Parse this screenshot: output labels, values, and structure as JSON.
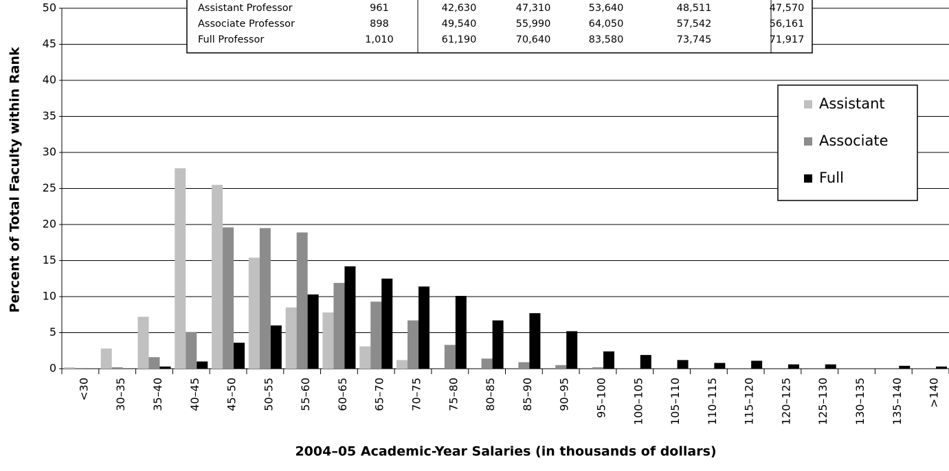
{
  "chart_data": {
    "type": "bar",
    "xlabel": "2004–05 Academic-Year Salaries (in thousands of dollars)",
    "ylabel": "Percent of Total Faculty within Rank",
    "categories": [
      "<30",
      "30–35",
      "35–40",
      "40–45",
      "45–50",
      "50–55",
      "55–60",
      "60–65",
      "65–70",
      "70–75",
      "75–80",
      "80–85",
      "85–90",
      "90–95",
      "95–100",
      "100–105",
      "105–110",
      "110–115",
      "115–120",
      "120–125",
      "125–130",
      "130–135",
      "135–140",
      ">140"
    ],
    "series": [
      {
        "name": "Assistant",
        "color": "#c0c0c0",
        "values": [
          0.2,
          2.8,
          7.2,
          27.8,
          25.5,
          15.4,
          8.5,
          7.8,
          3.1,
          1.2,
          0,
          0,
          0,
          0,
          0,
          0,
          0,
          0,
          0,
          0,
          0,
          0,
          0,
          0
        ]
      },
      {
        "name": "Associate",
        "color": "#8c8c8c",
        "values": [
          0.1,
          0.2,
          1.6,
          5.1,
          19.6,
          19.5,
          18.9,
          11.9,
          9.3,
          6.7,
          3.3,
          1.4,
          0.9,
          0.5,
          0.2,
          0,
          0,
          0,
          0,
          0,
          0,
          0,
          0,
          0
        ]
      },
      {
        "name": "Full",
        "color": "#000000",
        "values": [
          0,
          0,
          0.3,
          1.0,
          3.6,
          6.0,
          10.3,
          14.2,
          12.5,
          11.4,
          10.1,
          6.7,
          7.7,
          5.2,
          2.4,
          1.9,
          1.2,
          0.8,
          1.1,
          0.6,
          0.6,
          0,
          0.4,
          0.3
        ]
      }
    ],
    "ylim": [
      0,
      50
    ],
    "yticks": [
      0,
      5,
      10,
      15,
      20,
      25,
      30,
      35,
      40,
      45,
      50
    ],
    "grid": true,
    "legend": "upper right",
    "table": {
      "rows": [
        [
          "Assistant Professor",
          "961",
          "42,630",
          "47,310",
          "53,640",
          "48,511",
          "47,570"
        ],
        [
          "Associate Professor",
          "898",
          "49,540",
          "55,990",
          "64,050",
          "57,542",
          "56,161"
        ],
        [
          "Full Professor",
          "1,010",
          "61,190",
          "70,640",
          "83,580",
          "73,745",
          "71,917"
        ]
      ]
    }
  }
}
